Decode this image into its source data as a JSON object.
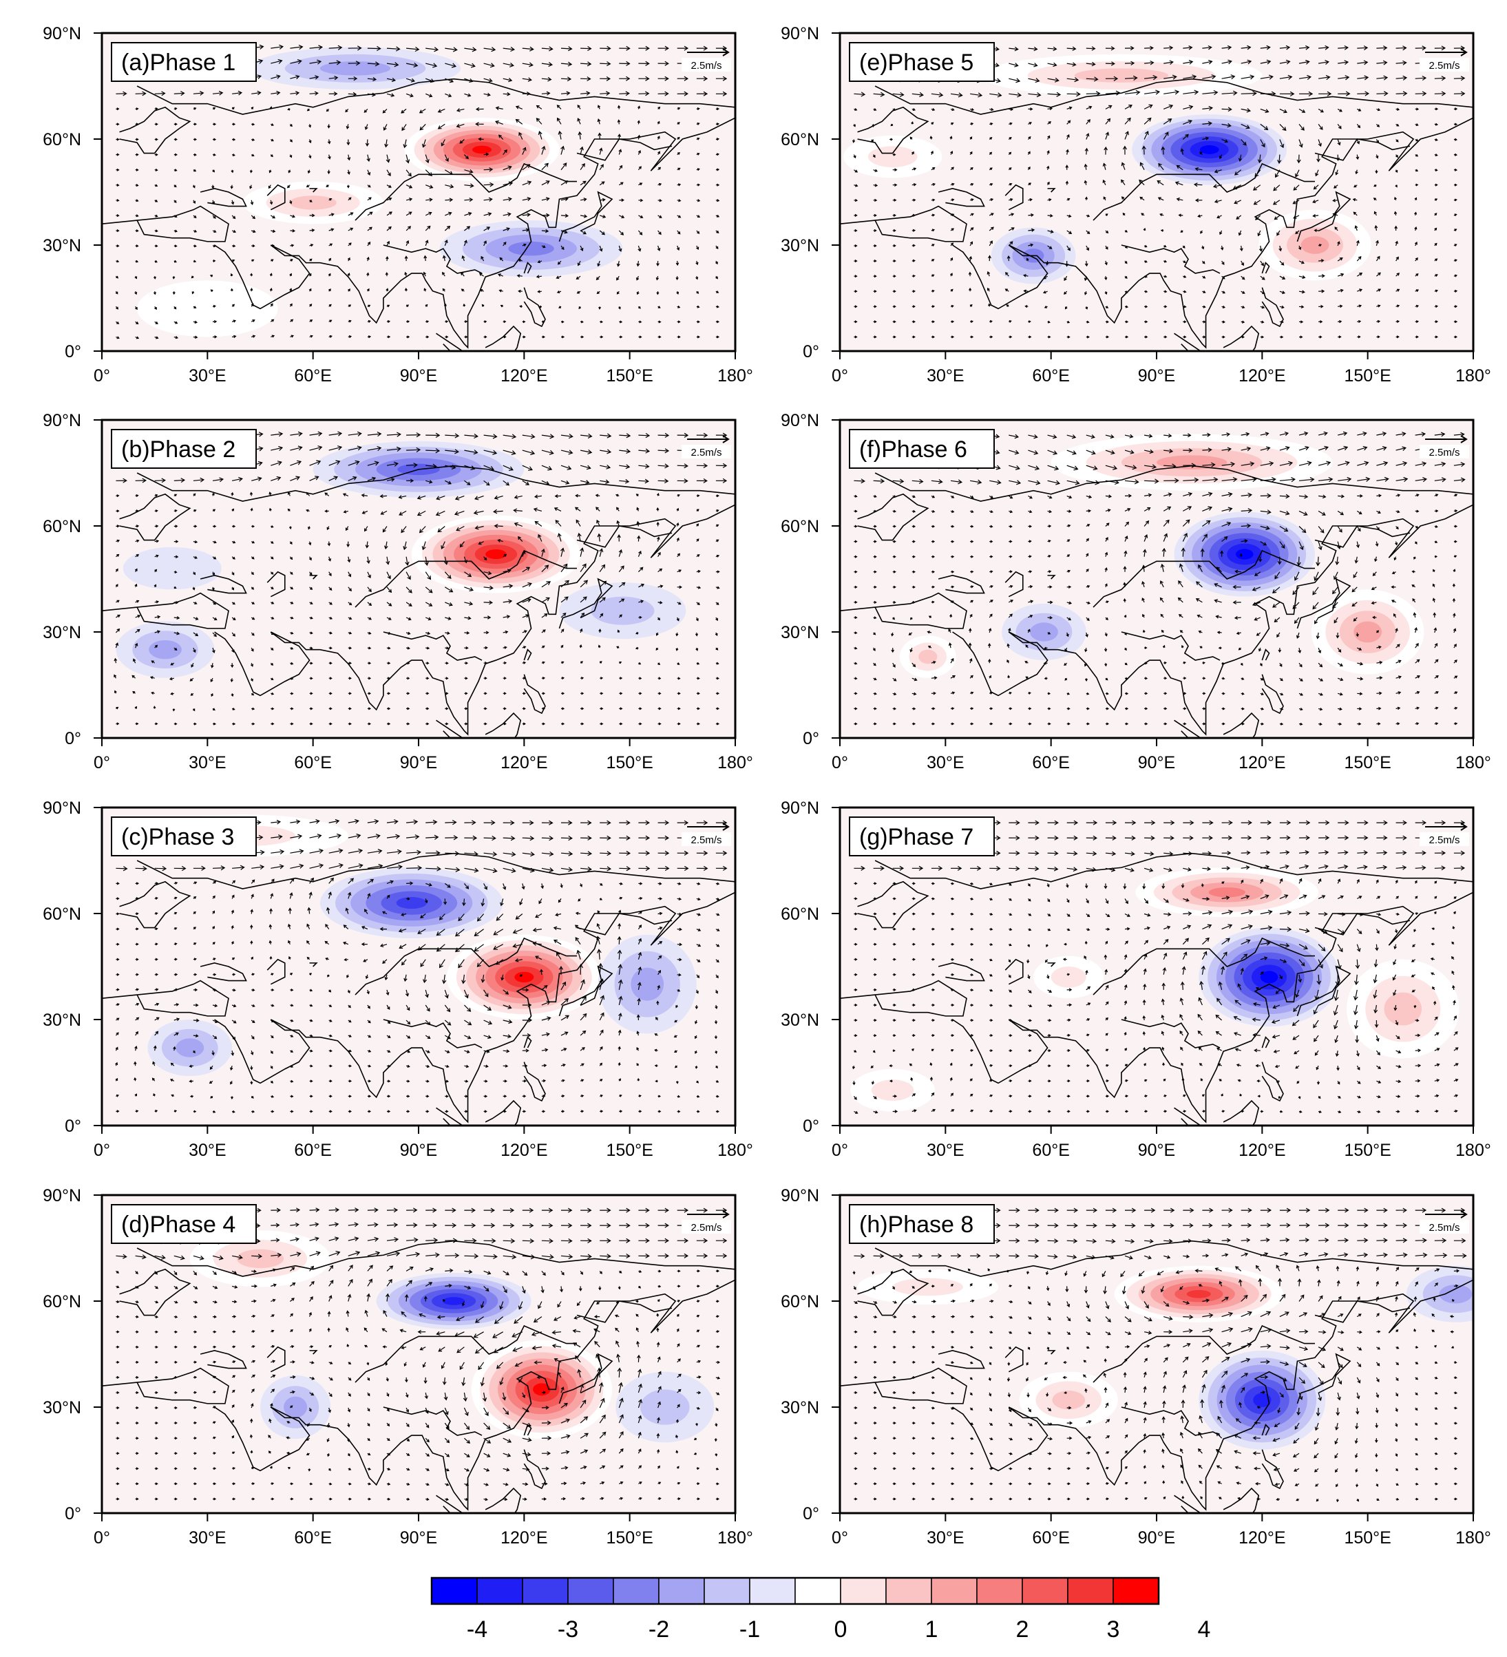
{
  "figure": {
    "panels": [
      {
        "label": "(a)Phase 1",
        "ref_vector": "2.5m/s",
        "anomalies": [
          {
            "lon": 108,
            "lat": 57,
            "amp": 4.0,
            "rx": 22,
            "ry": 9
          },
          {
            "lon": 60,
            "lat": 42,
            "amp": 1.3,
            "rx": 20,
            "ry": 6
          },
          {
            "lon": 122,
            "lat": 29,
            "amp": -2.2,
            "rx": 26,
            "ry": 8
          },
          {
            "lon": 72,
            "lat": 80,
            "amp": -1.5,
            "rx": 30,
            "ry": 6
          },
          {
            "lon": 30,
            "lat": 12,
            "amp": 0.6,
            "rx": 20,
            "ry": 8
          }
        ]
      },
      {
        "label": "(b)Phase 2",
        "ref_vector": "2.5m/s",
        "anomalies": [
          {
            "lon": 112,
            "lat": 52,
            "amp": 4.0,
            "rx": 24,
            "ry": 11
          },
          {
            "lon": 90,
            "lat": 76,
            "amp": -2.3,
            "rx": 30,
            "ry": 8
          },
          {
            "lon": 18,
            "lat": 25,
            "amp": -1.7,
            "rx": 14,
            "ry": 8
          },
          {
            "lon": 148,
            "lat": 36,
            "amp": -1.0,
            "rx": 18,
            "ry": 8
          },
          {
            "lon": 20,
            "lat": 48,
            "amp": -0.7,
            "rx": 14,
            "ry": 6
          }
        ]
      },
      {
        "label": "(c)Phase 3",
        "ref_vector": "2.5m/s",
        "anomalies": [
          {
            "lon": 120,
            "lat": 42,
            "amp": 4.0,
            "rx": 22,
            "ry": 12
          },
          {
            "lon": 88,
            "lat": 63,
            "amp": -2.8,
            "rx": 26,
            "ry": 10
          },
          {
            "lon": 155,
            "lat": 40,
            "amp": -1.7,
            "rx": 14,
            "ry": 14
          },
          {
            "lon": 25,
            "lat": 22,
            "amp": -1.6,
            "rx": 12,
            "ry": 8
          },
          {
            "lon": 40,
            "lat": 82,
            "amp": 1.0,
            "rx": 30,
            "ry": 6
          }
        ]
      },
      {
        "label": "(d)Phase 4",
        "ref_vector": "2.5m/s",
        "anomalies": [
          {
            "lon": 125,
            "lat": 35,
            "amp": 4.0,
            "rx": 20,
            "ry": 14
          },
          {
            "lon": 100,
            "lat": 60,
            "amp": -3.3,
            "rx": 22,
            "ry": 8
          },
          {
            "lon": 55,
            "lat": 30,
            "amp": -1.4,
            "rx": 10,
            "ry": 9
          },
          {
            "lon": 160,
            "lat": 30,
            "amp": -1.1,
            "rx": 14,
            "ry": 10
          },
          {
            "lon": 45,
            "lat": 72,
            "amp": 1.5,
            "rx": 20,
            "ry": 8
          }
        ]
      },
      {
        "label": "(e)Phase 5",
        "ref_vector": "2.5m/s",
        "anomalies": [
          {
            "lon": 105,
            "lat": 57,
            "amp": -4.0,
            "rx": 22,
            "ry": 10
          },
          {
            "lon": 135,
            "lat": 30,
            "amp": 2.0,
            "rx": 16,
            "ry": 10
          },
          {
            "lon": 55,
            "lat": 27,
            "amp": -2.0,
            "rx": 12,
            "ry": 8
          },
          {
            "lon": 80,
            "lat": 78,
            "amp": 1.4,
            "rx": 40,
            "ry": 6
          },
          {
            "lon": 15,
            "lat": 55,
            "amp": 0.8,
            "rx": 14,
            "ry": 6
          }
        ]
      },
      {
        "label": "(f)Phase 6",
        "ref_vector": "2.5m/s",
        "anomalies": [
          {
            "lon": 115,
            "lat": 52,
            "amp": -4.0,
            "rx": 20,
            "ry": 12
          },
          {
            "lon": 100,
            "lat": 78,
            "amp": 1.9,
            "rx": 40,
            "ry": 8
          },
          {
            "lon": 150,
            "lat": 30,
            "amp": 1.8,
            "rx": 16,
            "ry": 12
          },
          {
            "lon": 25,
            "lat": 23,
            "amp": 1.6,
            "rx": 8,
            "ry": 6
          },
          {
            "lon": 58,
            "lat": 30,
            "amp": -1.3,
            "rx": 12,
            "ry": 8
          }
        ]
      },
      {
        "label": "(g)Phase 7",
        "ref_vector": "2.5m/s",
        "anomalies": [
          {
            "lon": 122,
            "lat": 42,
            "amp": -4.0,
            "rx": 20,
            "ry": 14
          },
          {
            "lon": 110,
            "lat": 66,
            "amp": 2.3,
            "rx": 26,
            "ry": 7
          },
          {
            "lon": 160,
            "lat": 33,
            "amp": 1.7,
            "rx": 16,
            "ry": 14
          },
          {
            "lon": 65,
            "lat": 42,
            "amp": 1.2,
            "rx": 10,
            "ry": 6
          },
          {
            "lon": 15,
            "lat": 10,
            "amp": 1.0,
            "rx": 12,
            "ry": 6
          }
        ]
      },
      {
        "label": "(h)Phase 8",
        "ref_vector": "2.5m/s",
        "anomalies": [
          {
            "lon": 120,
            "lat": 32,
            "amp": -3.6,
            "rx": 18,
            "ry": 14
          },
          {
            "lon": 102,
            "lat": 62,
            "amp": 3.6,
            "rx": 24,
            "ry": 8
          },
          {
            "lon": 65,
            "lat": 32,
            "amp": 1.4,
            "rx": 14,
            "ry": 8
          },
          {
            "lon": 175,
            "lat": 62,
            "amp": -1.3,
            "rx": 14,
            "ry": 8
          },
          {
            "lon": 25,
            "lat": 64,
            "amp": 0.8,
            "rx": 20,
            "ry": 5
          }
        ]
      }
    ],
    "axes": {
      "lon_ticks": [
        "0°",
        "30°E",
        "60°E",
        "90°E",
        "120°E",
        "150°E",
        "180°"
      ],
      "lat_ticks": [
        "0°",
        "30°N",
        "60°N",
        "90°N"
      ],
      "lon_range": [
        0,
        180
      ],
      "lat_range": [
        0,
        90
      ]
    },
    "colorbar": {
      "labels": [
        "-4",
        "-3",
        "-2",
        "-1",
        "0",
        "1",
        "2",
        "3",
        "4"
      ],
      "colors": [
        "#0000ff",
        "#1f1ff5",
        "#3b3bf0",
        "#5c5cec",
        "#8080ee",
        "#a4a4f2",
        "#c4c4f6",
        "#e4e4fa",
        "#ffffff",
        "#fde4e4",
        "#fbc4c4",
        "#f9a2a2",
        "#f77e7e",
        "#f45a5a",
        "#f23535",
        "#ff0000"
      ]
    }
  }
}
